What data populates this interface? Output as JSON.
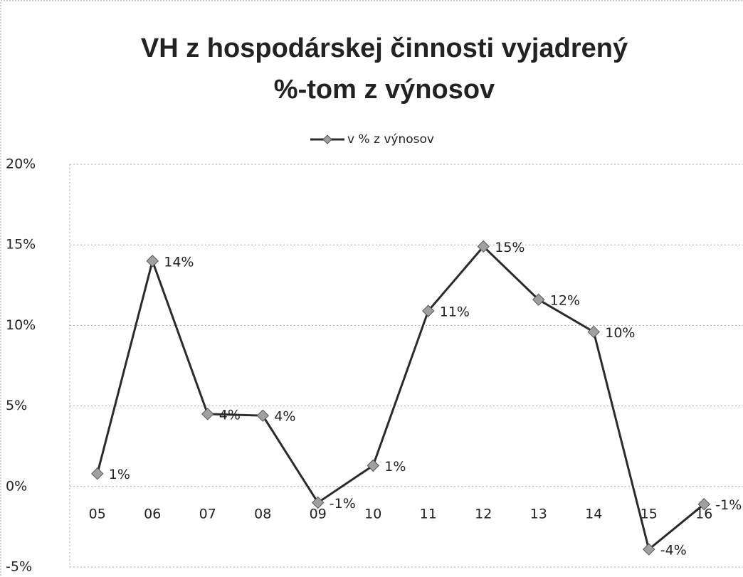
{
  "chart_data": {
    "type": "line",
    "title": [
      "VH z hospodárskej činnosti vyjadrený",
      "%-tom z výnosov"
    ],
    "categories": [
      "05",
      "06",
      "07",
      "08",
      "09",
      "10",
      "11",
      "12",
      "13",
      "14",
      "15",
      "16"
    ],
    "series": [
      {
        "name": "v % z výnosov",
        "color": "#2b2b2b",
        "marker_color": "#a0a0a0",
        "values": [
          0.8,
          14.0,
          4.5,
          4.4,
          -1.0,
          1.3,
          10.9,
          14.9,
          11.6,
          9.6,
          -3.9,
          -1.1
        ],
        "value_labels": [
          "1%",
          "14%",
          "4%",
          "4%",
          "-1%",
          "1%",
          "11%",
          "15%",
          "12%",
          "10%",
          "-4%",
          "-1%"
        ]
      }
    ],
    "ylim": [
      -5,
      20
    ],
    "yticks": [
      {
        "value": -5,
        "label": "-5%"
      },
      {
        "value": 0,
        "label": "0%"
      },
      {
        "value": 5,
        "label": "5%"
      },
      {
        "value": 10,
        "label": "10%"
      },
      {
        "value": 15,
        "label": "15%"
      },
      {
        "value": 20,
        "label": "20%"
      }
    ],
    "grid": true,
    "legend": "top"
  }
}
